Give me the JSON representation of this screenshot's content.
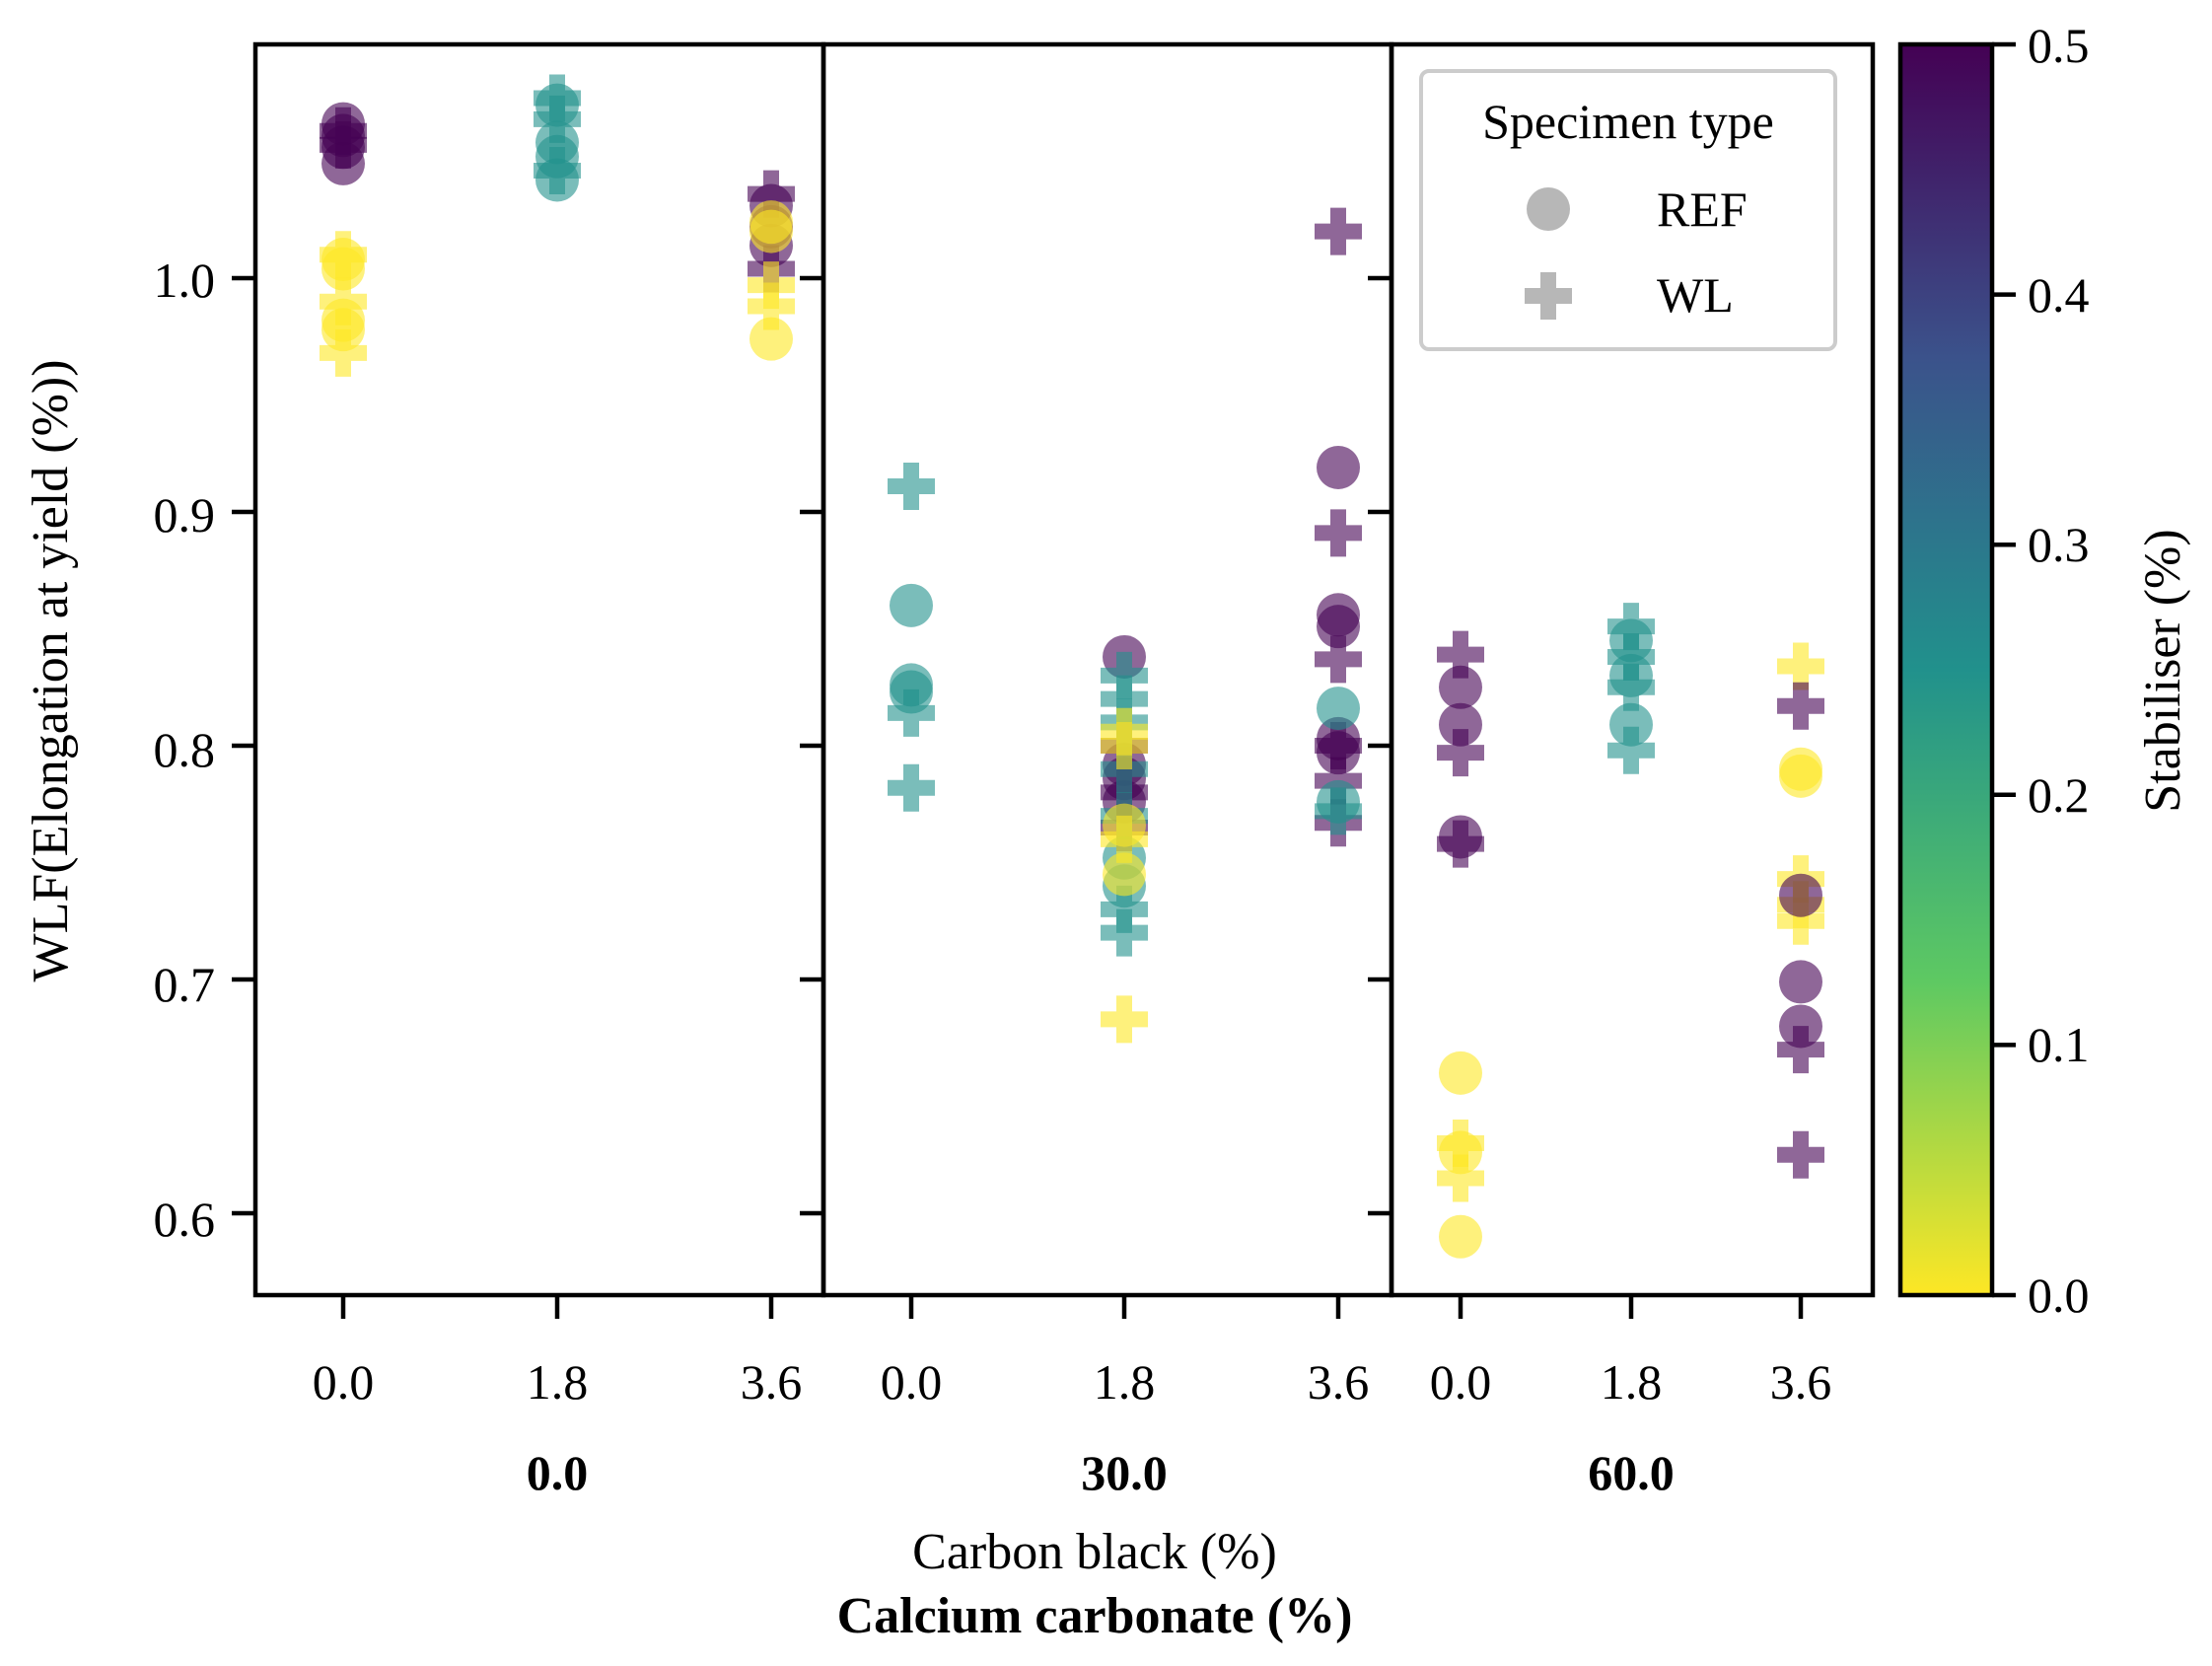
{
  "chart_data": {
    "type": "scatter",
    "ylabel": "WLF(Elongation at yield (%))",
    "xlabel": "Carbon black (%)",
    "xlabel_group": "Calcium carbonate (%)",
    "ylim": [
      0.565,
      1.1
    ],
    "yticks": [
      "0.6",
      "0.7",
      "0.8",
      "0.9",
      "1.0"
    ],
    "panels": [
      "0.0",
      "30.0",
      "60.0"
    ],
    "categories": [
      "0.0",
      "1.8",
      "3.6"
    ],
    "colorbar": {
      "label": "Stabiliser (%)",
      "range": [
        0.0,
        0.5
      ],
      "ticks": [
        "0.0",
        "0.1",
        "0.2",
        "0.3",
        "0.4",
        "0.5"
      ],
      "colormap": "viridis_r"
    },
    "legend": {
      "title": "Specimen type",
      "location": "upper right",
      "entries": [
        {
          "label": "REF",
          "marker": "circle"
        },
        {
          "label": "WL",
          "marker": "plus"
        }
      ]
    },
    "points": [
      {
        "panel": 0,
        "cat": 0,
        "y": 1.066,
        "stab": 0.5,
        "type": "REF"
      },
      {
        "panel": 0,
        "cat": 0,
        "y": 1.061,
        "stab": 0.5,
        "type": "REF"
      },
      {
        "panel": 0,
        "cat": 0,
        "y": 1.056,
        "stab": 0.5,
        "type": "REF"
      },
      {
        "panel": 0,
        "cat": 0,
        "y": 1.049,
        "stab": 0.5,
        "type": "REF"
      },
      {
        "panel": 0,
        "cat": 0,
        "y": 1.063,
        "stab": 0.5,
        "type": "WL"
      },
      {
        "panel": 0,
        "cat": 0,
        "y": 1.057,
        "stab": 0.5,
        "type": "WL"
      },
      {
        "panel": 0,
        "cat": 0,
        "y": 1.008,
        "stab": 0.0,
        "type": "REF"
      },
      {
        "panel": 0,
        "cat": 0,
        "y": 1.004,
        "stab": 0.0,
        "type": "REF"
      },
      {
        "panel": 0,
        "cat": 0,
        "y": 0.982,
        "stab": 0.0,
        "type": "REF"
      },
      {
        "panel": 0,
        "cat": 0,
        "y": 0.978,
        "stab": 0.0,
        "type": "REF"
      },
      {
        "panel": 0,
        "cat": 0,
        "y": 1.01,
        "stab": 0.0,
        "type": "WL"
      },
      {
        "panel": 0,
        "cat": 0,
        "y": 0.99,
        "stab": 0.0,
        "type": "WL"
      },
      {
        "panel": 0,
        "cat": 0,
        "y": 0.968,
        "stab": 0.0,
        "type": "WL"
      },
      {
        "panel": 0,
        "cat": 1,
        "y": 1.074,
        "stab": 0.25,
        "type": "REF"
      },
      {
        "panel": 0,
        "cat": 1,
        "y": 1.058,
        "stab": 0.25,
        "type": "REF"
      },
      {
        "panel": 0,
        "cat": 1,
        "y": 1.052,
        "stab": 0.25,
        "type": "REF"
      },
      {
        "panel": 0,
        "cat": 1,
        "y": 1.042,
        "stab": 0.25,
        "type": "REF"
      },
      {
        "panel": 0,
        "cat": 1,
        "y": 1.077,
        "stab": 0.25,
        "type": "WL"
      },
      {
        "panel": 0,
        "cat": 1,
        "y": 1.068,
        "stab": 0.25,
        "type": "WL"
      },
      {
        "panel": 0,
        "cat": 1,
        "y": 1.046,
        "stab": 0.25,
        "type": "WL"
      },
      {
        "panel": 0,
        "cat": 2,
        "y": 1.031,
        "stab": 0.5,
        "type": "REF"
      },
      {
        "panel": 0,
        "cat": 2,
        "y": 1.022,
        "stab": 0.5,
        "type": "REF"
      },
      {
        "panel": 0,
        "cat": 2,
        "y": 1.014,
        "stab": 0.5,
        "type": "REF"
      },
      {
        "panel": 0,
        "cat": 2,
        "y": 1.036,
        "stab": 0.5,
        "type": "WL"
      },
      {
        "panel": 0,
        "cat": 2,
        "y": 1.004,
        "stab": 0.5,
        "type": "WL"
      },
      {
        "panel": 0,
        "cat": 2,
        "y": 1.024,
        "stab": 0.0,
        "type": "REF"
      },
      {
        "panel": 0,
        "cat": 2,
        "y": 1.02,
        "stab": 0.0,
        "type": "REF"
      },
      {
        "panel": 0,
        "cat": 2,
        "y": 0.974,
        "stab": 0.0,
        "type": "REF"
      },
      {
        "panel": 0,
        "cat": 2,
        "y": 0.997,
        "stab": 0.0,
        "type": "WL"
      },
      {
        "panel": 0,
        "cat": 2,
        "y": 0.988,
        "stab": 0.0,
        "type": "WL"
      },
      {
        "panel": 1,
        "cat": 0,
        "y": 0.911,
        "stab": 0.25,
        "type": "WL"
      },
      {
        "panel": 1,
        "cat": 0,
        "y": 0.86,
        "stab": 0.25,
        "type": "REF"
      },
      {
        "panel": 1,
        "cat": 0,
        "y": 0.826,
        "stab": 0.25,
        "type": "REF"
      },
      {
        "panel": 1,
        "cat": 0,
        "y": 0.823,
        "stab": 0.25,
        "type": "REF"
      },
      {
        "panel": 1,
        "cat": 0,
        "y": 0.814,
        "stab": 0.25,
        "type": "WL"
      },
      {
        "panel": 1,
        "cat": 0,
        "y": 0.782,
        "stab": 0.25,
        "type": "WL"
      },
      {
        "panel": 1,
        "cat": 1,
        "y": 0.838,
        "stab": 0.5,
        "type": "REF"
      },
      {
        "panel": 1,
        "cat": 1,
        "y": 0.792,
        "stab": 0.5,
        "type": "REF"
      },
      {
        "panel": 1,
        "cat": 1,
        "y": 0.786,
        "stab": 0.5,
        "type": "REF"
      },
      {
        "panel": 1,
        "cat": 1,
        "y": 0.776,
        "stab": 0.5,
        "type": "REF"
      },
      {
        "panel": 1,
        "cat": 1,
        "y": 0.8,
        "stab": 0.5,
        "type": "WL"
      },
      {
        "panel": 1,
        "cat": 1,
        "y": 0.78,
        "stab": 0.5,
        "type": "WL"
      },
      {
        "panel": 1,
        "cat": 1,
        "y": 0.765,
        "stab": 0.5,
        "type": "WL"
      },
      {
        "panel": 1,
        "cat": 1,
        "y": 0.752,
        "stab": 0.25,
        "type": "REF"
      },
      {
        "panel": 1,
        "cat": 1,
        "y": 0.74,
        "stab": 0.25,
        "type": "REF"
      },
      {
        "panel": 1,
        "cat": 1,
        "y": 0.83,
        "stab": 0.25,
        "type": "WL"
      },
      {
        "panel": 1,
        "cat": 1,
        "y": 0.82,
        "stab": 0.25,
        "type": "WL"
      },
      {
        "panel": 1,
        "cat": 1,
        "y": 0.81,
        "stab": 0.25,
        "type": "WL"
      },
      {
        "panel": 1,
        "cat": 1,
        "y": 0.79,
        "stab": 0.25,
        "type": "WL"
      },
      {
        "panel": 1,
        "cat": 1,
        "y": 0.77,
        "stab": 0.25,
        "type": "WL"
      },
      {
        "panel": 1,
        "cat": 1,
        "y": 0.73,
        "stab": 0.25,
        "type": "WL"
      },
      {
        "panel": 1,
        "cat": 1,
        "y": 0.72,
        "stab": 0.25,
        "type": "WL"
      },
      {
        "panel": 1,
        "cat": 1,
        "y": 0.766,
        "stab": 0.0,
        "type": "REF"
      },
      {
        "panel": 1,
        "cat": 1,
        "y": 0.745,
        "stab": 0.0,
        "type": "REF"
      },
      {
        "panel": 1,
        "cat": 1,
        "y": 0.806,
        "stab": 0.0,
        "type": "WL"
      },
      {
        "panel": 1,
        "cat": 1,
        "y": 0.8,
        "stab": 0.0,
        "type": "WL"
      },
      {
        "panel": 1,
        "cat": 1,
        "y": 0.76,
        "stab": 0.0,
        "type": "WL"
      },
      {
        "panel": 1,
        "cat": 1,
        "y": 0.683,
        "stab": 0.0,
        "type": "WL"
      },
      {
        "panel": 1,
        "cat": 2,
        "y": 0.919,
        "stab": 0.5,
        "type": "REF"
      },
      {
        "panel": 1,
        "cat": 2,
        "y": 0.856,
        "stab": 0.5,
        "type": "REF"
      },
      {
        "panel": 1,
        "cat": 2,
        "y": 0.851,
        "stab": 0.5,
        "type": "REF"
      },
      {
        "panel": 1,
        "cat": 2,
        "y": 0.803,
        "stab": 0.5,
        "type": "REF"
      },
      {
        "panel": 1,
        "cat": 2,
        "y": 0.797,
        "stab": 0.5,
        "type": "REF"
      },
      {
        "panel": 1,
        "cat": 2,
        "y": 1.02,
        "stab": 0.5,
        "type": "WL"
      },
      {
        "panel": 1,
        "cat": 2,
        "y": 0.891,
        "stab": 0.5,
        "type": "WL"
      },
      {
        "panel": 1,
        "cat": 2,
        "y": 0.837,
        "stab": 0.5,
        "type": "WL"
      },
      {
        "panel": 1,
        "cat": 2,
        "y": 0.8,
        "stab": 0.5,
        "type": "WL"
      },
      {
        "panel": 1,
        "cat": 2,
        "y": 0.785,
        "stab": 0.5,
        "type": "WL"
      },
      {
        "panel": 1,
        "cat": 2,
        "y": 0.767,
        "stab": 0.5,
        "type": "WL"
      },
      {
        "panel": 1,
        "cat": 2,
        "y": 0.816,
        "stab": 0.25,
        "type": "REF"
      },
      {
        "panel": 1,
        "cat": 2,
        "y": 0.776,
        "stab": 0.25,
        "type": "REF"
      },
      {
        "panel": 1,
        "cat": 2,
        "y": 0.772,
        "stab": 0.25,
        "type": "WL"
      },
      {
        "panel": 2,
        "cat": 0,
        "y": 0.825,
        "stab": 0.5,
        "type": "REF"
      },
      {
        "panel": 2,
        "cat": 0,
        "y": 0.809,
        "stab": 0.5,
        "type": "REF"
      },
      {
        "panel": 2,
        "cat": 0,
        "y": 0.761,
        "stab": 0.5,
        "type": "REF"
      },
      {
        "panel": 2,
        "cat": 0,
        "y": 0.839,
        "stab": 0.5,
        "type": "WL"
      },
      {
        "panel": 2,
        "cat": 0,
        "y": 0.797,
        "stab": 0.5,
        "type": "WL"
      },
      {
        "panel": 2,
        "cat": 0,
        "y": 0.758,
        "stab": 0.5,
        "type": "WL"
      },
      {
        "panel": 2,
        "cat": 0,
        "y": 0.66,
        "stab": 0.0,
        "type": "REF"
      },
      {
        "panel": 2,
        "cat": 0,
        "y": 0.626,
        "stab": 0.0,
        "type": "REF"
      },
      {
        "panel": 2,
        "cat": 0,
        "y": 0.59,
        "stab": 0.0,
        "type": "REF"
      },
      {
        "panel": 2,
        "cat": 0,
        "y": 0.63,
        "stab": 0.0,
        "type": "WL"
      },
      {
        "panel": 2,
        "cat": 0,
        "y": 0.615,
        "stab": 0.0,
        "type": "WL"
      },
      {
        "panel": 2,
        "cat": 1,
        "y": 0.845,
        "stab": 0.25,
        "type": "REF"
      },
      {
        "panel": 2,
        "cat": 1,
        "y": 0.83,
        "stab": 0.25,
        "type": "REF"
      },
      {
        "panel": 2,
        "cat": 1,
        "y": 0.809,
        "stab": 0.25,
        "type": "REF"
      },
      {
        "panel": 2,
        "cat": 1,
        "y": 0.851,
        "stab": 0.25,
        "type": "WL"
      },
      {
        "panel": 2,
        "cat": 1,
        "y": 0.838,
        "stab": 0.25,
        "type": "WL"
      },
      {
        "panel": 2,
        "cat": 1,
        "y": 0.825,
        "stab": 0.25,
        "type": "WL"
      },
      {
        "panel": 2,
        "cat": 1,
        "y": 0.798,
        "stab": 0.25,
        "type": "WL"
      },
      {
        "panel": 2,
        "cat": 2,
        "y": 0.834,
        "stab": 0.0,
        "type": "WL"
      },
      {
        "panel": 2,
        "cat": 2,
        "y": 0.79,
        "stab": 0.0,
        "type": "REF"
      },
      {
        "panel": 2,
        "cat": 2,
        "y": 0.787,
        "stab": 0.0,
        "type": "REF"
      },
      {
        "panel": 2,
        "cat": 2,
        "y": 0.743,
        "stab": 0.0,
        "type": "WL"
      },
      {
        "panel": 2,
        "cat": 2,
        "y": 0.732,
        "stab": 0.0,
        "type": "WL"
      },
      {
        "panel": 2,
        "cat": 2,
        "y": 0.725,
        "stab": 0.0,
        "type": "WL"
      },
      {
        "panel": 2,
        "cat": 2,
        "y": 0.736,
        "stab": 0.5,
        "type": "REF"
      },
      {
        "panel": 2,
        "cat": 2,
        "y": 0.699,
        "stab": 0.5,
        "type": "REF"
      },
      {
        "panel": 2,
        "cat": 2,
        "y": 0.68,
        "stab": 0.5,
        "type": "REF"
      },
      {
        "panel": 2,
        "cat": 2,
        "y": 0.817,
        "stab": 0.5,
        "type": "WL"
      },
      {
        "panel": 2,
        "cat": 2,
        "y": 0.67,
        "stab": 0.5,
        "type": "WL"
      },
      {
        "panel": 2,
        "cat": 2,
        "y": 0.625,
        "stab": 0.5,
        "type": "WL"
      }
    ]
  }
}
